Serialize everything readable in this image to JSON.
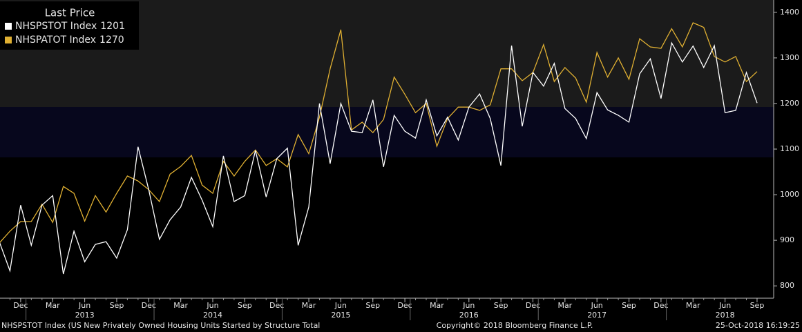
{
  "chart_data": {
    "type": "line",
    "legend_title": "Last Price",
    "x": [
      "2012-10",
      "2012-11",
      "2012-12",
      "2013-01",
      "2013-02",
      "2013-03",
      "2013-04",
      "2013-05",
      "2013-06",
      "2013-07",
      "2013-08",
      "2013-09",
      "2013-10",
      "2013-11",
      "2013-12",
      "2014-01",
      "2014-02",
      "2014-03",
      "2014-04",
      "2014-05",
      "2014-06",
      "2014-07",
      "2014-08",
      "2014-09",
      "2014-10",
      "2014-11",
      "2014-12",
      "2015-01",
      "2015-02",
      "2015-03",
      "2015-04",
      "2015-05",
      "2015-06",
      "2015-07",
      "2015-08",
      "2015-09",
      "2015-10",
      "2015-11",
      "2015-12",
      "2016-01",
      "2016-02",
      "2016-03",
      "2016-04",
      "2016-05",
      "2016-06",
      "2016-07",
      "2016-08",
      "2016-09",
      "2016-10",
      "2016-11",
      "2016-12",
      "2017-01",
      "2017-02",
      "2017-03",
      "2017-04",
      "2017-05",
      "2017-06",
      "2017-07",
      "2017-08",
      "2017-09",
      "2017-10",
      "2017-11",
      "2017-12",
      "2018-01",
      "2018-02",
      "2018-03",
      "2018-04",
      "2018-05",
      "2018-06",
      "2018-07",
      "2018-08",
      "2018-09"
    ],
    "series": [
      {
        "name": "NHSPSTOT Index",
        "color": "#ffffff",
        "values": [
          897,
          833,
          977,
          889,
          977,
          998,
          826,
          920,
          853,
          891,
          897,
          861,
          923,
          1105,
          1011,
          902,
          945,
          973,
          1038,
          988,
          930,
          1085,
          985,
          998,
          1097,
          995,
          1079,
          1102,
          889,
          973,
          1200,
          1068,
          1200,
          1139,
          1136,
          1208,
          1061,
          1174,
          1139,
          1124,
          1208,
          1129,
          1170,
          1120,
          1192,
          1221,
          1167,
          1064,
          1327,
          1150,
          1268,
          1238,
          1288,
          1189,
          1167,
          1123,
          1224,
          1186,
          1174,
          1159,
          1265,
          1298,
          1211,
          1333,
          1291,
          1326,
          1279,
          1327,
          1180,
          1185,
          1268,
          1201
        ]
      },
      {
        "name": "NHSPATOT Index",
        "color": "#e0b032",
        "values": [
          894,
          920,
          941,
          941,
          979,
          939,
          1018,
          1003,
          942,
          998,
          962,
          1003,
          1041,
          1030,
          1011,
          985,
          1045,
          1062,
          1086,
          1021,
          1003,
          1073,
          1041,
          1073,
          1098,
          1064,
          1079,
          1061,
          1132,
          1090,
          1170,
          1276,
          1362,
          1142,
          1159,
          1136,
          1165,
          1258,
          1220,
          1180,
          1200,
          1106,
          1167,
          1192,
          1192,
          1185,
          1197,
          1276,
          1276,
          1250,
          1268,
          1329,
          1248,
          1279,
          1256,
          1203,
          1312,
          1258,
          1300,
          1253,
          1342,
          1324,
          1321,
          1364,
          1324,
          1377,
          1367,
          1303,
          1291,
          1303,
          1248,
          1270
        ]
      }
    ],
    "ylim": [
      773,
      1427
    ],
    "yticks": [
      800,
      900,
      1000,
      1100,
      1200,
      1300,
      1400
    ],
    "xticks": [
      {
        "value": "2012-12",
        "label": "Dec"
      },
      {
        "value": "2013-03",
        "label": "Mar"
      },
      {
        "value": "2013-06",
        "label": "Jun"
      },
      {
        "value": "2013-09",
        "label": "Sep"
      },
      {
        "value": "2013-12",
        "label": "Dec"
      },
      {
        "value": "2014-03",
        "label": "Mar"
      },
      {
        "value": "2014-06",
        "label": "Jun"
      },
      {
        "value": "2014-09",
        "label": "Sep"
      },
      {
        "value": "2014-12",
        "label": "Dec"
      },
      {
        "value": "2015-03",
        "label": "Mar"
      },
      {
        "value": "2015-06",
        "label": "Jun"
      },
      {
        "value": "2015-09",
        "label": "Sep"
      },
      {
        "value": "2015-12",
        "label": "Dec"
      },
      {
        "value": "2016-03",
        "label": "Mar"
      },
      {
        "value": "2016-06",
        "label": "Jun"
      },
      {
        "value": "2016-09",
        "label": "Sep"
      },
      {
        "value": "2016-12",
        "label": "Dec"
      },
      {
        "value": "2017-03",
        "label": "Mar"
      },
      {
        "value": "2017-06",
        "label": "Jun"
      },
      {
        "value": "2017-09",
        "label": "Sep"
      },
      {
        "value": "2017-12",
        "label": "Dec"
      },
      {
        "value": "2018-03",
        "label": "Mar"
      },
      {
        "value": "2018-06",
        "label": "Jun"
      },
      {
        "value": "2018-09",
        "label": "Sep"
      }
    ],
    "xtick_years": [
      {
        "value": "2013-06",
        "label": "2013"
      },
      {
        "value": "2014-06",
        "label": "2014"
      },
      {
        "value": "2015-06",
        "label": "2015"
      },
      {
        "value": "2016-06",
        "label": "2016"
      },
      {
        "value": "2017-06",
        "label": "2017"
      },
      {
        "value": "2018-06",
        "label": "2018"
      }
    ],
    "footer_left": "NHSPSTOT Index (US New Privately Owned Housing Units Started by Structure Total",
    "footer_center": "Copyright© 2018 Bloomberg Finance L.P.",
    "footer_right": "25-Oct-2018 16:19:25"
  }
}
